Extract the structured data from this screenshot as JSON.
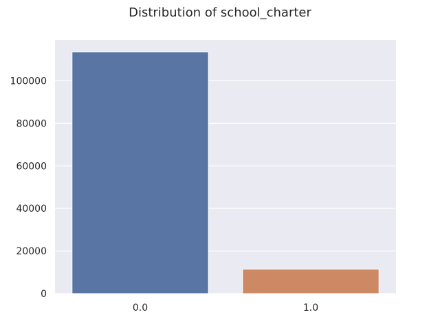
{
  "chart_data": {
    "type": "bar",
    "title": "Distribution of school_charter",
    "xlabel": "",
    "ylabel": "",
    "categories": [
      "0.0",
      "1.0"
    ],
    "values": [
      113500,
      11500
    ],
    "ylim": [
      0,
      119200
    ],
    "yticks": [
      0,
      20000,
      40000,
      60000,
      80000,
      100000
    ],
    "ytick_labels": [
      "0",
      "20000",
      "40000",
      "60000",
      "80000",
      "100000"
    ],
    "grid": true,
    "colors": [
      "#5875a4",
      "#cc8963"
    ],
    "background_color": "#eaeaf2",
    "grid_color": "#ffffff"
  }
}
